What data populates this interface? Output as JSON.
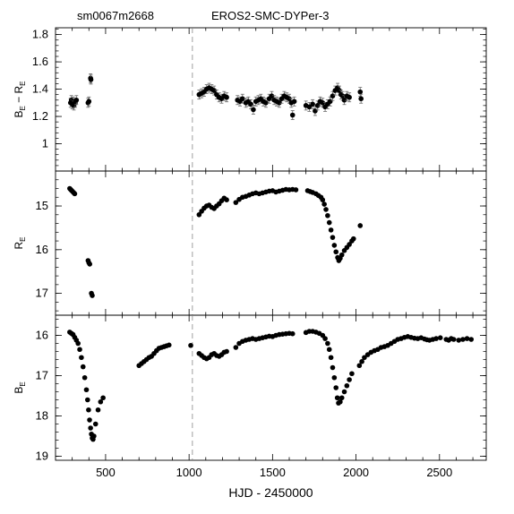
{
  "header": {
    "field_id": "sm0067m2668",
    "star_id": "EROS2-SMC-DYPer-3"
  },
  "chart_data": [
    {
      "type": "scatter",
      "panel": "top",
      "ylabel": {
        "main": "B",
        "sub1": "E",
        "mid": " − R",
        "sub2": "E"
      },
      "xlim": [
        200,
        2780
      ],
      "ylim": [
        0.8,
        1.85
      ],
      "y_inverted": false,
      "yticks": [
        1,
        1.2,
        1.4,
        1.6,
        1.8
      ],
      "ytick_labels": [
        "1",
        "1.2",
        "1.4",
        "1.6",
        "1.8"
      ],
      "error_bars": true,
      "points": [
        [
          290,
          1.3
        ],
        [
          295,
          1.32
        ],
        [
          300,
          1.29
        ],
        [
          305,
          1.31
        ],
        [
          310,
          1.28
        ],
        [
          318,
          1.3
        ],
        [
          325,
          1.32
        ],
        [
          395,
          1.3
        ],
        [
          400,
          1.31
        ],
        [
          410,
          1.48
        ],
        [
          412,
          1.47
        ],
        [
          1060,
          1.36
        ],
        [
          1075,
          1.37
        ],
        [
          1090,
          1.38
        ],
        [
          1105,
          1.4
        ],
        [
          1120,
          1.41
        ],
        [
          1135,
          1.4
        ],
        [
          1150,
          1.39
        ],
        [
          1165,
          1.36
        ],
        [
          1180,
          1.34
        ],
        [
          1195,
          1.33
        ],
        [
          1210,
          1.35
        ],
        [
          1225,
          1.34
        ],
        [
          1290,
          1.32
        ],
        [
          1305,
          1.31
        ],
        [
          1320,
          1.33
        ],
        [
          1340,
          1.3
        ],
        [
          1355,
          1.31
        ],
        [
          1370,
          1.29
        ],
        [
          1385,
          1.25
        ],
        [
          1400,
          1.31
        ],
        [
          1415,
          1.32
        ],
        [
          1430,
          1.33
        ],
        [
          1445,
          1.31
        ],
        [
          1460,
          1.3
        ],
        [
          1480,
          1.33
        ],
        [
          1495,
          1.35
        ],
        [
          1510,
          1.32
        ],
        [
          1525,
          1.31
        ],
        [
          1540,
          1.3
        ],
        [
          1555,
          1.33
        ],
        [
          1570,
          1.35
        ],
        [
          1585,
          1.34
        ],
        [
          1600,
          1.33
        ],
        [
          1612,
          1.3
        ],
        [
          1620,
          1.21
        ],
        [
          1630,
          1.31
        ],
        [
          1700,
          1.28
        ],
        [
          1720,
          1.27
        ],
        [
          1740,
          1.29
        ],
        [
          1755,
          1.24
        ],
        [
          1770,
          1.28
        ],
        [
          1785,
          1.31
        ],
        [
          1800,
          1.3
        ],
        [
          1815,
          1.27
        ],
        [
          1830,
          1.29
        ],
        [
          1845,
          1.31
        ],
        [
          1860,
          1.35
        ],
        [
          1875,
          1.39
        ],
        [
          1890,
          1.41
        ],
        [
          1900,
          1.39
        ],
        [
          1910,
          1.36
        ],
        [
          1920,
          1.35
        ],
        [
          1930,
          1.32
        ],
        [
          1945,
          1.35
        ],
        [
          1960,
          1.34
        ],
        [
          2025,
          1.38
        ],
        [
          2030,
          1.33
        ]
      ]
    },
    {
      "type": "scatter",
      "panel": "middle",
      "ylabel": {
        "main": "R",
        "sub1": "E",
        "mid": "",
        "sub2": ""
      },
      "xlim": [
        200,
        2780
      ],
      "ylim": [
        14.2,
        17.5
      ],
      "y_inverted": true,
      "yticks": [
        15,
        16,
        17
      ],
      "ytick_labels": [
        "15",
        "16",
        "17"
      ],
      "error_bars": false,
      "points": [
        [
          285,
          14.6
        ],
        [
          290,
          14.62
        ],
        [
          295,
          14.64
        ],
        [
          300,
          14.66
        ],
        [
          305,
          14.68
        ],
        [
          310,
          14.7
        ],
        [
          315,
          14.72
        ],
        [
          395,
          16.25
        ],
        [
          400,
          16.3
        ],
        [
          405,
          16.33
        ],
        [
          415,
          17.0
        ],
        [
          420,
          17.05
        ],
        [
          1060,
          15.2
        ],
        [
          1075,
          15.12
        ],
        [
          1090,
          15.05
        ],
        [
          1105,
          15.0
        ],
        [
          1120,
          14.98
        ],
        [
          1135,
          15.03
        ],
        [
          1150,
          15.06
        ],
        [
          1165,
          15.0
        ],
        [
          1180,
          14.95
        ],
        [
          1195,
          14.88
        ],
        [
          1210,
          14.82
        ],
        [
          1225,
          14.86
        ],
        [
          1280,
          14.92
        ],
        [
          1300,
          14.85
        ],
        [
          1320,
          14.8
        ],
        [
          1340,
          14.78
        ],
        [
          1360,
          14.75
        ],
        [
          1380,
          14.72
        ],
        [
          1400,
          14.7
        ],
        [
          1420,
          14.72
        ],
        [
          1440,
          14.7
        ],
        [
          1460,
          14.68
        ],
        [
          1480,
          14.66
        ],
        [
          1500,
          14.65
        ],
        [
          1520,
          14.68
        ],
        [
          1540,
          14.66
        ],
        [
          1560,
          14.64
        ],
        [
          1580,
          14.62
        ],
        [
          1600,
          14.63
        ],
        [
          1620,
          14.62
        ],
        [
          1640,
          14.63
        ],
        [
          1710,
          14.65
        ],
        [
          1725,
          14.67
        ],
        [
          1740,
          14.69
        ],
        [
          1760,
          14.72
        ],
        [
          1775,
          14.76
        ],
        [
          1790,
          14.8
        ],
        [
          1800,
          14.86
        ],
        [
          1810,
          14.96
        ],
        [
          1820,
          15.08
        ],
        [
          1830,
          15.22
        ],
        [
          1840,
          15.38
        ],
        [
          1850,
          15.55
        ],
        [
          1860,
          15.72
        ],
        [
          1870,
          15.9
        ],
        [
          1880,
          16.05
        ],
        [
          1890,
          16.18
        ],
        [
          1897,
          16.25
        ],
        [
          1905,
          16.2
        ],
        [
          1915,
          16.12
        ],
        [
          1930,
          16.02
        ],
        [
          1945,
          15.95
        ],
        [
          1960,
          15.88
        ],
        [
          1975,
          15.8
        ],
        [
          1985,
          15.75
        ],
        [
          2025,
          15.45
        ]
      ]
    },
    {
      "type": "scatter",
      "panel": "bottom",
      "ylabel": {
        "main": "B",
        "sub1": "E",
        "mid": "",
        "sub2": ""
      },
      "xlim": [
        200,
        2780
      ],
      "ylim": [
        15.5,
        19.1
      ],
      "y_inverted": true,
      "yticks": [
        16,
        17,
        18,
        19
      ],
      "ytick_labels": [
        "16",
        "17",
        "18",
        "19"
      ],
      "xticks": [
        500,
        1000,
        1500,
        2000,
        2500
      ],
      "xtick_labels": [
        "500",
        "1000",
        "1500",
        "2000",
        "2500"
      ],
      "xlabel": "HJD - 2450000",
      "error_bars": false,
      "points": [
        [
          285,
          15.92
        ],
        [
          295,
          15.95
        ],
        [
          305,
          15.98
        ],
        [
          315,
          16.05
        ],
        [
          325,
          16.12
        ],
        [
          335,
          16.2
        ],
        [
          345,
          16.35
        ],
        [
          355,
          16.55
        ],
        [
          365,
          16.78
        ],
        [
          375,
          17.05
        ],
        [
          385,
          17.35
        ],
        [
          392,
          17.6
        ],
        [
          398,
          17.85
        ],
        [
          404,
          18.1
        ],
        [
          410,
          18.3
        ],
        [
          415,
          18.45
        ],
        [
          420,
          18.55
        ],
        [
          425,
          18.58
        ],
        [
          430,
          18.5
        ],
        [
          440,
          18.2
        ],
        [
          455,
          17.85
        ],
        [
          470,
          17.65
        ],
        [
          485,
          17.55
        ],
        [
          700,
          16.75
        ],
        [
          715,
          16.7
        ],
        [
          730,
          16.65
        ],
        [
          745,
          16.6
        ],
        [
          760,
          16.55
        ],
        [
          775,
          16.52
        ],
        [
          790,
          16.45
        ],
        [
          805,
          16.38
        ],
        [
          820,
          16.32
        ],
        [
          835,
          16.3
        ],
        [
          850,
          16.28
        ],
        [
          865,
          16.26
        ],
        [
          880,
          16.24
        ],
        [
          1010,
          16.25
        ],
        [
          1060,
          16.45
        ],
        [
          1075,
          16.5
        ],
        [
          1090,
          16.55
        ],
        [
          1105,
          16.58
        ],
        [
          1120,
          16.55
        ],
        [
          1135,
          16.48
        ],
        [
          1150,
          16.45
        ],
        [
          1165,
          16.5
        ],
        [
          1180,
          16.52
        ],
        [
          1195,
          16.48
        ],
        [
          1210,
          16.42
        ],
        [
          1225,
          16.4
        ],
        [
          1280,
          16.3
        ],
        [
          1300,
          16.2
        ],
        [
          1320,
          16.15
        ],
        [
          1340,
          16.12
        ],
        [
          1360,
          16.1
        ],
        [
          1380,
          16.08
        ],
        [
          1400,
          16.1
        ],
        [
          1420,
          16.08
        ],
        [
          1440,
          16.06
        ],
        [
          1460,
          16.04
        ],
        [
          1480,
          16.02
        ],
        [
          1500,
          16.03
        ],
        [
          1520,
          16.0
        ],
        [
          1540,
          15.98
        ],
        [
          1560,
          15.97
        ],
        [
          1580,
          15.96
        ],
        [
          1600,
          15.95
        ],
        [
          1620,
          15.96
        ],
        [
          1700,
          15.93
        ],
        [
          1720,
          15.9
        ],
        [
          1740,
          15.9
        ],
        [
          1760,
          15.92
        ],
        [
          1780,
          15.95
        ],
        [
          1800,
          16.0
        ],
        [
          1815,
          16.08
        ],
        [
          1830,
          16.2
        ],
        [
          1840,
          16.35
        ],
        [
          1850,
          16.55
        ],
        [
          1860,
          16.8
        ],
        [
          1870,
          17.05
        ],
        [
          1880,
          17.3
        ],
        [
          1888,
          17.55
        ],
        [
          1895,
          17.68
        ],
        [
          1905,
          17.65
        ],
        [
          1915,
          17.55
        ],
        [
          1930,
          17.4
        ],
        [
          1945,
          17.25
        ],
        [
          1960,
          17.1
        ],
        [
          1975,
          16.95
        ],
        [
          2020,
          16.75
        ],
        [
          2035,
          16.65
        ],
        [
          2050,
          16.55
        ],
        [
          2070,
          16.48
        ],
        [
          2090,
          16.42
        ],
        [
          2110,
          16.38
        ],
        [
          2130,
          16.35
        ],
        [
          2150,
          16.3
        ],
        [
          2170,
          16.28
        ],
        [
          2190,
          16.25
        ],
        [
          2210,
          16.2
        ],
        [
          2230,
          16.15
        ],
        [
          2250,
          16.1
        ],
        [
          2270,
          16.08
        ],
        [
          2290,
          16.05
        ],
        [
          2310,
          16.03
        ],
        [
          2330,
          16.05
        ],
        [
          2350,
          16.07
        ],
        [
          2370,
          16.08
        ],
        [
          2390,
          16.06
        ],
        [
          2410,
          16.09
        ],
        [
          2425,
          16.11
        ],
        [
          2440,
          16.12
        ],
        [
          2460,
          16.1
        ],
        [
          2480,
          16.08
        ],
        [
          2505,
          16.06
        ],
        [
          2540,
          16.1
        ],
        [
          2555,
          16.12
        ],
        [
          2570,
          16.08
        ],
        [
          2585,
          16.1
        ],
        [
          2615,
          16.12
        ],
        [
          2640,
          16.1
        ],
        [
          2665,
          16.08
        ],
        [
          2690,
          16.1
        ]
      ]
    }
  ],
  "marker_line": {
    "x": 1020,
    "style": "dashed"
  }
}
